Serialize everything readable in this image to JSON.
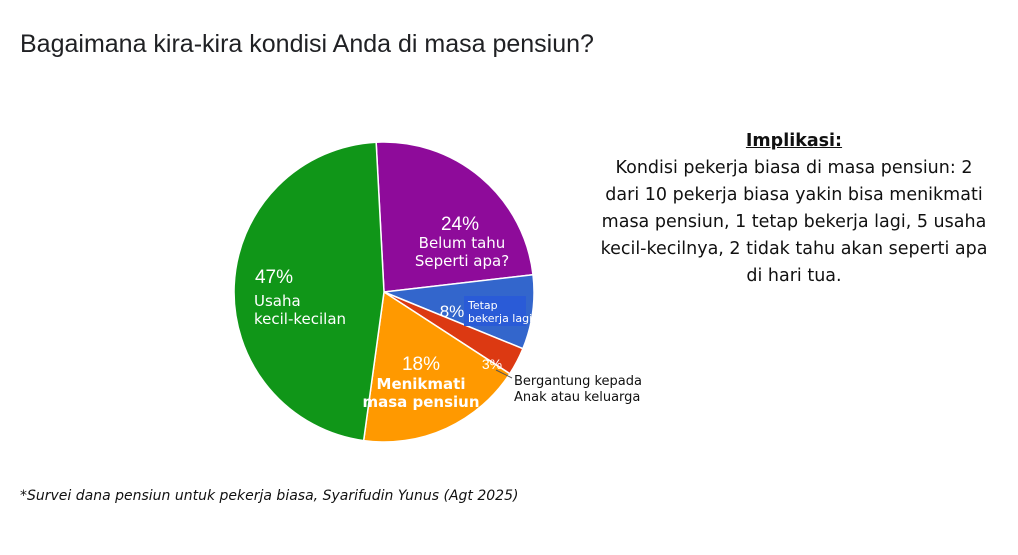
{
  "title": "Bagaimana kira-kira kondisi Anda di masa pensiun?",
  "chart_data": {
    "type": "pie",
    "title": "Bagaimana kira-kira kondisi Anda di masa pensiun?",
    "slices": [
      {
        "label_lines": [
          "Belum tahu",
          "Seperti apa?"
        ],
        "pct_label": "24%",
        "value": 24,
        "color": "#8e0b9a"
      },
      {
        "label_lines": [
          "Tetap",
          "bekerja lagi"
        ],
        "pct_label": "8%",
        "value": 8,
        "color": "#3366cc"
      },
      {
        "label_lines": [
          "Bergantung kepada",
          "Anak atau keluarga"
        ],
        "pct_label": "3%",
        "value": 3,
        "color": "#dc3912"
      },
      {
        "label_lines": [
          "Menikmati",
          "masa pensiun"
        ],
        "pct_label": "18%",
        "value": 18,
        "color": "#ff9900"
      },
      {
        "label_lines": [
          "Usaha",
          "kecil-kecilan"
        ],
        "pct_label": "47%",
        "value": 47,
        "color": "#109618"
      }
    ]
  },
  "implikasi": {
    "heading": "Implikasi:",
    "lines": [
      "Kondisi pekerja biasa di masa pensiun: 2",
      "dari 10 pekerja biasa yakin bisa menikmati",
      "masa pensiun, 1 tetap bekerja lagi, 5 usaha",
      "kecil-kecilnya, 2 tidak tahu akan seperti apa",
      "di hari tua."
    ]
  },
  "footnote": "*Survei dana pensiun untuk pekerja biasa, Syarifudin Yunus (Agt 2025)"
}
